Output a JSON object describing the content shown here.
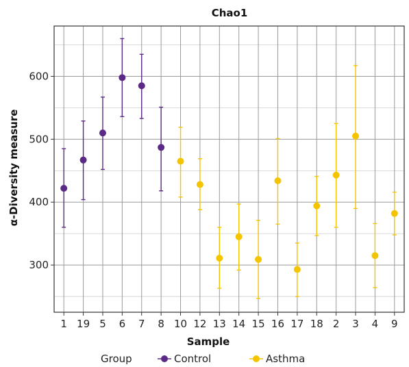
{
  "chart_data": {
    "type": "scatter",
    "title": "Chao1",
    "xlabel": "Sample",
    "ylabel": "α-Diversity measure",
    "categories": [
      "1",
      "19",
      "5",
      "6",
      "7",
      "8",
      "10",
      "12",
      "13",
      "14",
      "15",
      "16",
      "17",
      "18",
      "2",
      "3",
      "4",
      "9"
    ],
    "ylim": [
      225,
      680
    ],
    "yticks": [
      300,
      400,
      500,
      600
    ],
    "grid": true,
    "legend": {
      "title": "Group",
      "placement": "bottom",
      "entries": [
        {
          "name": "Control",
          "color": "#5b2a86"
        },
        {
          "name": "Asthma",
          "color": "#f5c400"
        }
      ]
    },
    "series": [
      {
        "name": "Control",
        "color": "#5b2a86",
        "points": [
          {
            "x": "1",
            "y": 422,
            "low": 360,
            "high": 485
          },
          {
            "x": "19",
            "y": 467,
            "low": 404,
            "high": 529
          },
          {
            "x": "5",
            "y": 510,
            "low": 452,
            "high": 567
          },
          {
            "x": "6",
            "y": 598,
            "low": 536,
            "high": 660
          },
          {
            "x": "7",
            "y": 585,
            "low": 533,
            "high": 635
          },
          {
            "x": "8",
            "y": 487,
            "low": 418,
            "high": 551
          }
        ]
      },
      {
        "name": "Asthma",
        "color": "#f5c400",
        "points": [
          {
            "x": "10",
            "y": 465,
            "low": 408,
            "high": 519
          },
          {
            "x": "12",
            "y": 428,
            "low": 388,
            "high": 469
          },
          {
            "x": "13",
            "y": 311,
            "low": 263,
            "high": 360
          },
          {
            "x": "14",
            "y": 345,
            "low": 292,
            "high": 397
          },
          {
            "x": "15",
            "y": 309,
            "low": 247,
            "high": 371
          },
          {
            "x": "16",
            "y": 434,
            "low": 365,
            "high": 501
          },
          {
            "x": "17",
            "y": 293,
            "low": 250,
            "high": 335
          },
          {
            "x": "18",
            "y": 394,
            "low": 347,
            "high": 441
          },
          {
            "x": "2",
            "y": 443,
            "low": 360,
            "high": 525
          },
          {
            "x": "3",
            "y": 505,
            "low": 390,
            "high": 617
          },
          {
            "x": "4",
            "y": 315,
            "low": 264,
            "high": 366
          },
          {
            "x": "9",
            "y": 382,
            "low": 348,
            "high": 416
          }
        ]
      }
    ]
  }
}
